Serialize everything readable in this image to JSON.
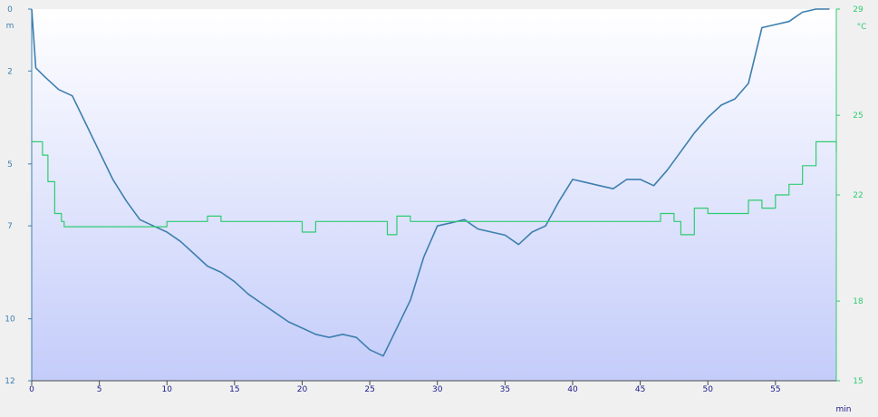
{
  "chart_data": {
    "type": "line",
    "x_unit": "min",
    "y_left_unit": "m",
    "y_right_unit": "°C",
    "x_ticks": [
      0,
      5,
      10,
      15,
      20,
      25,
      30,
      35,
      40,
      45,
      50,
      55
    ],
    "y_left_ticks": [
      0,
      2,
      5,
      7,
      10,
      12
    ],
    "y_right_ticks": [
      29,
      25,
      22,
      18,
      15
    ],
    "xlim": [
      0,
      59.5
    ],
    "y_left_lim": [
      0,
      12
    ],
    "y_right_lim": [
      15,
      29
    ],
    "left_inverted": true,
    "grid": false,
    "colors": {
      "depth": "#3d7fae",
      "temperature": "#2ecc71",
      "left_axis": "#3d7fae",
      "right_axis": "#2ecc71",
      "bg_top": "#ffffff",
      "bg_bottom": "#c4ccfa"
    },
    "series": [
      {
        "axis": "left",
        "points": [
          [
            0,
            0
          ],
          [
            0.3,
            1.9
          ],
          [
            1,
            2.2
          ],
          [
            2,
            2.6
          ],
          [
            3,
            2.8
          ],
          [
            4,
            3.7
          ],
          [
            5,
            4.6
          ],
          [
            6,
            5.5
          ],
          [
            7,
            6.2
          ],
          [
            8,
            6.8
          ],
          [
            9,
            7.0
          ],
          [
            10,
            7.2
          ],
          [
            11,
            7.5
          ],
          [
            12,
            7.9
          ],
          [
            13,
            8.3
          ],
          [
            14,
            8.5
          ],
          [
            15,
            8.8
          ],
          [
            16,
            9.2
          ],
          [
            17,
            9.5
          ],
          [
            18,
            9.8
          ],
          [
            19,
            10.1
          ],
          [
            20,
            10.3
          ],
          [
            21,
            10.5
          ],
          [
            22,
            10.6
          ],
          [
            23,
            10.5
          ],
          [
            24,
            10.6
          ],
          [
            25,
            11.0
          ],
          [
            26,
            11.2
          ],
          [
            27,
            10.3
          ],
          [
            28,
            9.4
          ],
          [
            29,
            8.0
          ],
          [
            30,
            7.0
          ],
          [
            31,
            6.9
          ],
          [
            32,
            6.8
          ],
          [
            33,
            7.1
          ],
          [
            34,
            7.2
          ],
          [
            35,
            7.3
          ],
          [
            36,
            7.6
          ],
          [
            37,
            7.2
          ],
          [
            38,
            7.0
          ],
          [
            39,
            6.2
          ],
          [
            40,
            5.5
          ],
          [
            41,
            5.6
          ],
          [
            42,
            5.7
          ],
          [
            43,
            5.8
          ],
          [
            44,
            5.5
          ],
          [
            45,
            5.5
          ],
          [
            46,
            5.7
          ],
          [
            47,
            5.2
          ],
          [
            48,
            4.6
          ],
          [
            49,
            4.0
          ],
          [
            50,
            3.5
          ],
          [
            51,
            3.1
          ],
          [
            52,
            2.9
          ],
          [
            53,
            2.4
          ],
          [
            54,
            0.6
          ],
          [
            55,
            0.5
          ],
          [
            56,
            0.4
          ],
          [
            57,
            0.1
          ],
          [
            58,
            0.0
          ],
          [
            59,
            0.0
          ]
        ]
      },
      {
        "axis": "right",
        "points": [
          [
            0,
            24
          ],
          [
            0.5,
            24
          ],
          [
            0.8,
            23.5
          ],
          [
            1.2,
            22.5
          ],
          [
            1.7,
            21.3
          ],
          [
            2.2,
            21.0
          ],
          [
            2.4,
            20.8
          ],
          [
            5,
            20.8
          ],
          [
            9,
            20.8
          ],
          [
            10,
            21.0
          ],
          [
            12,
            21.0
          ],
          [
            13,
            21.2
          ],
          [
            14,
            21.0
          ],
          [
            19,
            21.0
          ],
          [
            20,
            20.6
          ],
          [
            21,
            21.0
          ],
          [
            26,
            21.0
          ],
          [
            26.3,
            20.5
          ],
          [
            27,
            21.2
          ],
          [
            28,
            21.0
          ],
          [
            46,
            21.0
          ],
          [
            46.5,
            21.3
          ],
          [
            47.5,
            21.0
          ],
          [
            48,
            20.5
          ],
          [
            49,
            21.5
          ],
          [
            50,
            21.3
          ],
          [
            52,
            21.3
          ],
          [
            53,
            21.8
          ],
          [
            54,
            21.5
          ],
          [
            55,
            22.0
          ],
          [
            56,
            22.4
          ],
          [
            57,
            23.1
          ],
          [
            58,
            24.0
          ],
          [
            59,
            24.0
          ],
          [
            59.5,
            23.6
          ]
        ]
      }
    ]
  }
}
